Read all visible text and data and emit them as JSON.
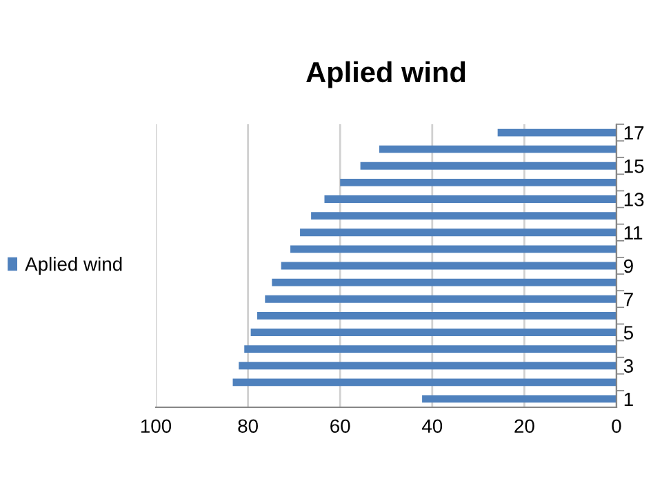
{
  "chart_data": {
    "type": "bar",
    "orientation": "horizontal",
    "title": "Aplied wind",
    "categories": [
      "17",
      null,
      "15",
      null,
      "13",
      null,
      "11",
      null,
      "9",
      null,
      "7",
      null,
      "5",
      null,
      "3",
      null,
      "1"
    ],
    "series": [
      {
        "name": "Aplied wind",
        "color": "#4f81bd",
        "values": [
          25.8,
          51.5,
          55.6,
          60,
          63.4,
          66.3,
          68.7,
          70.8,
          72.8,
          74.8,
          76.3,
          78,
          79.4,
          80.8,
          82,
          83.3,
          42.2
        ]
      }
    ],
    "xlim": [
      100,
      0
    ],
    "xticks": [
      100,
      80,
      60,
      40,
      20,
      0
    ],
    "grid": "x",
    "legend": "left"
  }
}
